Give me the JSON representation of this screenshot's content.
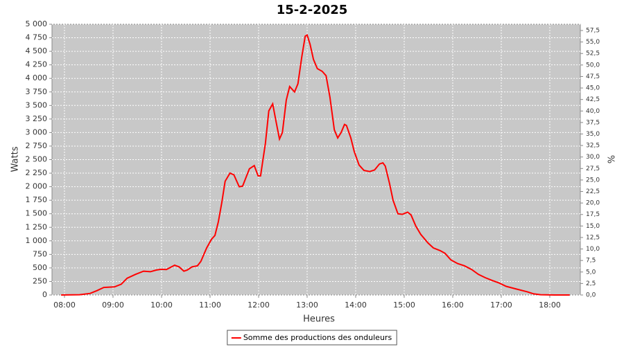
{
  "chart_data": {
    "type": "line",
    "title": "15-2-2025",
    "xlabel": "Heures",
    "ylabel": "Watts",
    "y2label": "%",
    "xlim": [
      7.743,
      18.629
    ],
    "ylim": [
      0,
      5000
    ],
    "y2lim": [
      0,
      58.86
    ],
    "xticks": [
      {
        "value": 8,
        "label": "08:00"
      },
      {
        "value": 9,
        "label": "09:00"
      },
      {
        "value": 10,
        "label": "10:00"
      },
      {
        "value": 11,
        "label": "11:00"
      },
      {
        "value": 12,
        "label": "12:00"
      },
      {
        "value": 13,
        "label": "13:00"
      },
      {
        "value": 14,
        "label": "14:00"
      },
      {
        "value": 15,
        "label": "15:00"
      },
      {
        "value": 16,
        "label": "16:00"
      },
      {
        "value": 17,
        "label": "17:00"
      },
      {
        "value": 18,
        "label": "18:00"
      }
    ],
    "yticks": [
      0,
      250,
      500,
      750,
      {
        "value": 1000,
        "label": "1 000"
      },
      {
        "value": 1250,
        "label": "1 250"
      },
      {
        "value": 1500,
        "label": "1 500"
      },
      {
        "value": 1750,
        "label": "1 750"
      },
      {
        "value": 2000,
        "label": "2 000"
      },
      {
        "value": 2250,
        "label": "2 250"
      },
      {
        "value": 2500,
        "label": "2 500"
      },
      {
        "value": 2750,
        "label": "2 750"
      },
      {
        "value": 3000,
        "label": "3 000"
      },
      {
        "value": 3250,
        "label": "3 250"
      },
      {
        "value": 3500,
        "label": "3 500"
      },
      {
        "value": 3750,
        "label": "3 750"
      },
      {
        "value": 4000,
        "label": "4 000"
      },
      {
        "value": 4250,
        "label": "4 250"
      },
      {
        "value": 4500,
        "label": "4 500"
      },
      {
        "value": 4750,
        "label": "4 750"
      },
      {
        "value": 5000,
        "label": "5 000"
      }
    ],
    "y2ticks": [
      {
        "value": 0,
        "label": "0,0"
      },
      {
        "value": 2.5,
        "label": "2,5"
      },
      {
        "value": 5,
        "label": "5,0"
      },
      {
        "value": 7.5,
        "label": "7,5"
      },
      {
        "value": 10,
        "label": "10,0"
      },
      {
        "value": 12.5,
        "label": "12,5"
      },
      {
        "value": 15,
        "label": "15,0"
      },
      {
        "value": 17.5,
        "label": "17,5"
      },
      {
        "value": 20,
        "label": "20,0"
      },
      {
        "value": 22.5,
        "label": "22,5"
      },
      {
        "value": 25,
        "label": "25,0"
      },
      {
        "value": 27.5,
        "label": "27,5"
      },
      {
        "value": 30,
        "label": "30,0"
      },
      {
        "value": 32.5,
        "label": "32,5"
      },
      {
        "value": 35,
        "label": "35,0"
      },
      {
        "value": 37.5,
        "label": "37,5"
      },
      {
        "value": 40,
        "label": "40,0"
      },
      {
        "value": 42.5,
        "label": "42,5"
      },
      {
        "value": 45,
        "label": "45,0"
      },
      {
        "value": 47.5,
        "label": "47,5"
      },
      {
        "value": 50,
        "label": "50,0"
      },
      {
        "value": 52.5,
        "label": "52,5"
      },
      {
        "value": 55,
        "label": "55,0"
      },
      {
        "value": 57.5,
        "label": "57,5"
      }
    ],
    "grid": true,
    "legend": "bottom",
    "x": [
      7.93,
      8.31,
      8.53,
      8.67,
      8.81,
      9.03,
      9.17,
      9.29,
      9.46,
      9.63,
      9.77,
      9.89,
      9.99,
      10.1,
      10.27,
      10.36,
      10.46,
      10.53,
      10.63,
      10.74,
      10.81,
      10.93,
      11.03,
      11.1,
      11.17,
      11.24,
      11.31,
      11.41,
      11.49,
      11.6,
      11.67,
      11.81,
      11.91,
      11.99,
      12.04,
      12.14,
      12.21,
      12.29,
      12.36,
      12.43,
      12.49,
      12.57,
      12.64,
      12.74,
      12.81,
      12.89,
      12.96,
      13.0,
      13.06,
      13.13,
      13.21,
      13.31,
      13.39,
      13.47,
      13.56,
      13.63,
      13.7,
      13.77,
      13.81,
      13.9,
      13.97,
      14.07,
      14.17,
      14.29,
      14.39,
      14.49,
      14.56,
      14.61,
      14.7,
      14.77,
      14.87,
      14.96,
      15.07,
      15.14,
      15.24,
      15.34,
      15.49,
      15.6,
      15.74,
      15.84,
      15.96,
      16.1,
      16.24,
      16.39,
      16.53,
      16.67,
      16.81,
      16.96,
      17.1,
      17.31,
      17.53,
      17.67,
      17.81,
      18.1,
      18.41
    ],
    "series": [
      {
        "name": "Somme des productions des onduleurs",
        "color": "#ff0000",
        "values": [
          0,
          5,
          30,
          80,
          140,
          150,
          200,
          310,
          380,
          440,
          430,
          460,
          475,
          470,
          550,
          520,
          440,
          460,
          520,
          540,
          620,
          870,
          1030,
          1100,
          1350,
          1700,
          2100,
          2250,
          2220,
          2000,
          2010,
          2330,
          2390,
          2200,
          2200,
          2800,
          3400,
          3530,
          3200,
          2880,
          3000,
          3600,
          3850,
          3750,
          3900,
          4400,
          4780,
          4800,
          4630,
          4350,
          4180,
          4130,
          4050,
          3650,
          3050,
          2900,
          3000,
          3150,
          3130,
          2900,
          2650,
          2400,
          2300,
          2280,
          2310,
          2420,
          2440,
          2380,
          2050,
          1750,
          1500,
          1490,
          1530,
          1480,
          1270,
          1120,
          960,
          870,
          820,
          770,
          650,
          580,
          540,
          470,
          380,
          320,
          270,
          220,
          160,
          110,
          60,
          20,
          5,
          0,
          0
        ]
      }
    ]
  }
}
